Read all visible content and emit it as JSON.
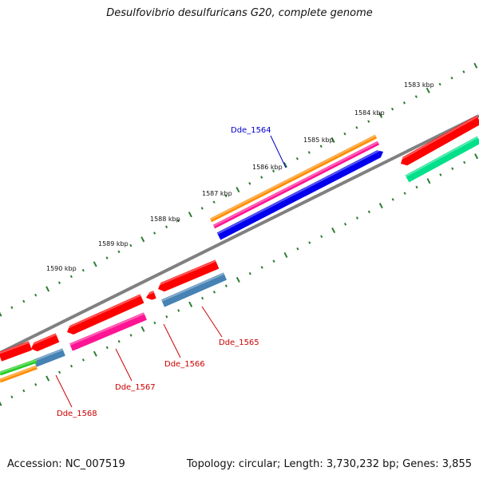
{
  "title": "Desulfovibrio desulfuricans G20, complete genome",
  "footer": {
    "accession": "Accession: NC_007519",
    "topology": "Topology: circular; Length: 3,730,232 bp; Genes: 3,855"
  },
  "colors": {
    "backbone": "#808080",
    "tick": "#2e7d32",
    "red": "#ff0000",
    "magenta": "#ff1493",
    "orange": "#ff8c00",
    "blue": "#0000ee",
    "steelblue": "#4682b4",
    "green": "#22cc22",
    "aquamarine": "#00e08a",
    "label_red": "#cc0000",
    "label_blue": "#0000cc"
  },
  "tick_labels": [
    "1583 kbp",
    "1584 kbp",
    "1585 kbp",
    "1586 kbp",
    "1587 kbp",
    "1588 kbp",
    "1589 kbp",
    "1590 kbp"
  ],
  "gene_labels": [
    {
      "name": "Dde_1564",
      "color": "label_blue"
    },
    {
      "name": "Dde_1565",
      "color": "label_red"
    },
    {
      "name": "Dde_1566",
      "color": "label_red"
    },
    {
      "name": "Dde_1567",
      "color": "label_red"
    },
    {
      "name": "Dde_1568",
      "color": "label_red"
    }
  ]
}
